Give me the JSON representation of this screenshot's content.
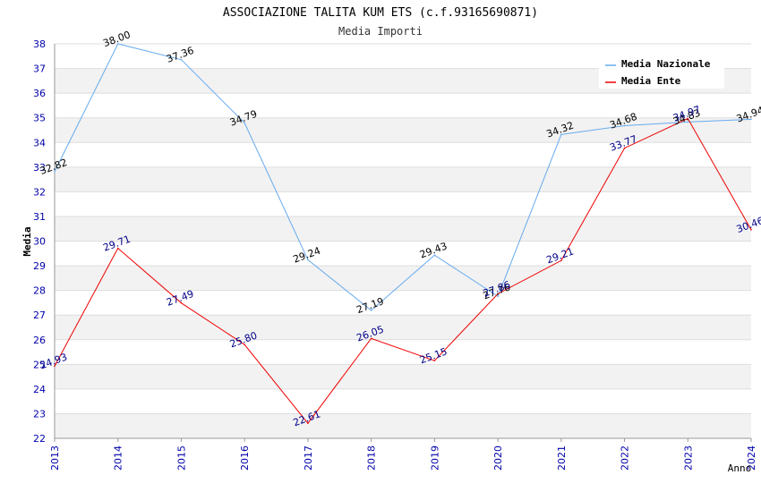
{
  "chart_data": {
    "type": "line",
    "title": "ASSOCIAZIONE TALITA KUM ETS (c.f.93165690871)",
    "subtitle": "Media Importi",
    "xlabel": "Anno",
    "ylabel": "Media",
    "x": [
      2013,
      2014,
      2015,
      2016,
      2017,
      2018,
      2019,
      2020,
      2021,
      2022,
      2023,
      2024
    ],
    "x_tick_labels": [
      "2013",
      "2014",
      "2015",
      "2016",
      "2017",
      "2018",
      "2019",
      "2020",
      "2021",
      "2022",
      "2023",
      "2024"
    ],
    "ylim": [
      22,
      38
    ],
    "y_ticks": [
      22,
      23,
      24,
      25,
      26,
      27,
      28,
      29,
      30,
      31,
      32,
      33,
      34,
      35,
      36,
      37,
      38
    ],
    "grid": true,
    "legend_position": "top-right",
    "series": [
      {
        "name": "Media Nazionale",
        "color": "#66aaee",
        "label_color": "#000000",
        "values": [
          32.82,
          38.0,
          37.36,
          34.79,
          29.24,
          27.19,
          29.43,
          27.76,
          34.32,
          34.68,
          34.83,
          34.94
        ],
        "value_labels": [
          "32.82",
          "38.00",
          "37.36",
          "34.79",
          "29.24",
          "27.19",
          "29.43",
          "27.76",
          "34.32",
          "34.68",
          "34.83",
          "34.94"
        ]
      },
      {
        "name": "Media Ente",
        "color": "#ee0000",
        "label_color": "#000088",
        "values": [
          24.93,
          29.71,
          27.49,
          25.8,
          22.61,
          26.05,
          25.15,
          27.86,
          29.21,
          33.77,
          34.97,
          30.46
        ],
        "value_labels": [
          "24.93",
          "29.71",
          "27.49",
          "25.80",
          "22.61",
          "26.05",
          "25.15",
          "27.86",
          "29.21",
          "33.77",
          "34.97",
          "30.46"
        ]
      }
    ]
  },
  "colors": {
    "band": "#f2f2f2",
    "grid": "#dddddd",
    "tick_text": "#0000aa",
    "title_text": "#000000",
    "subtitle_text": "#333333"
  }
}
